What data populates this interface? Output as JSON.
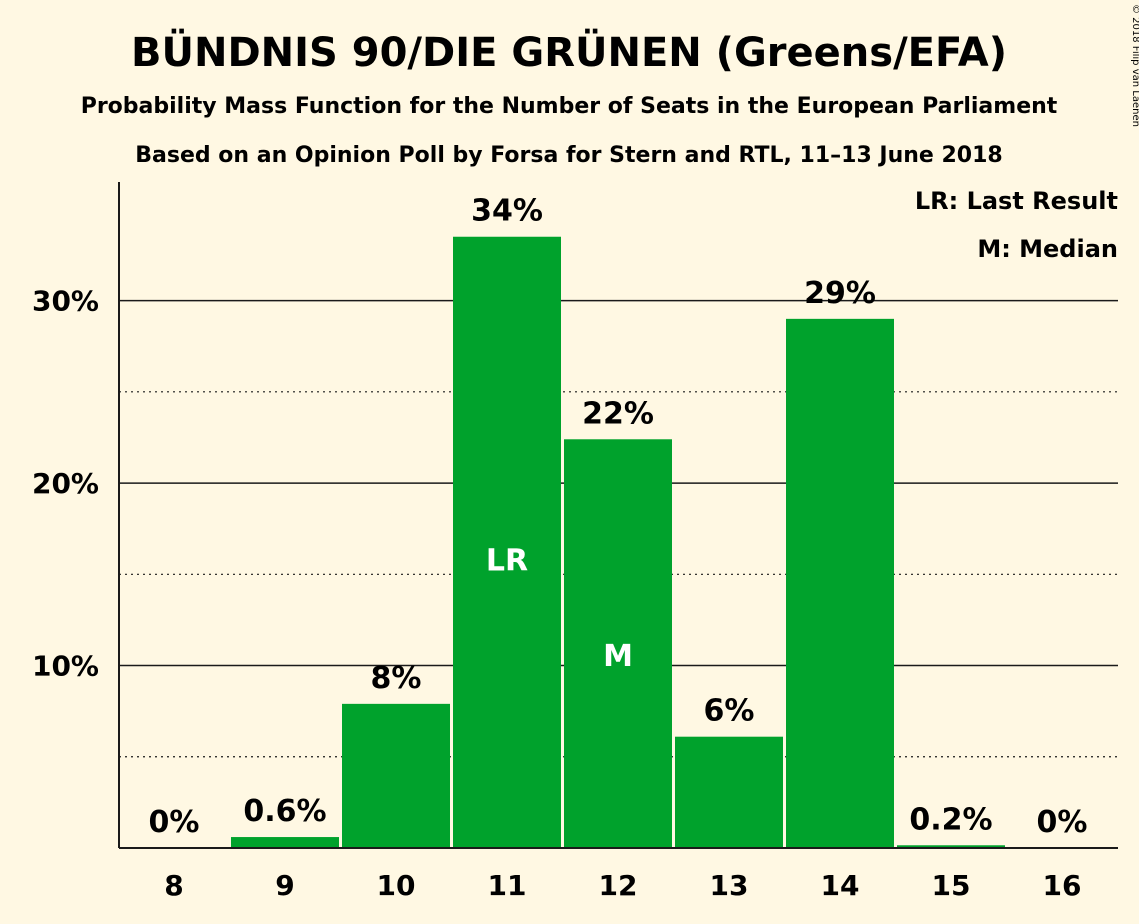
{
  "chart_data": {
    "type": "bar",
    "title": "BÜNDNIS 90/DIE GRÜNEN (Greens/EFA)",
    "subtitle": "Probability Mass Function for the Number of Seats in the European Parliament",
    "subtitle2": "Based on an Opinion Poll by Forsa for Stern and RTL, 11–13 June 2018",
    "categories": [
      "8",
      "9",
      "10",
      "11",
      "12",
      "13",
      "14",
      "15",
      "16"
    ],
    "values": [
      0,
      0.6,
      7.9,
      33.5,
      22.4,
      6.1,
      29.0,
      0.15,
      0
    ],
    "data_labels": [
      "0%",
      "0.6%",
      "8%",
      "34%",
      "22%",
      "6%",
      "29%",
      "0.2%",
      "0%"
    ],
    "bar_markers": {
      "11": "LR",
      "12": "M"
    },
    "ylim": [
      0,
      36.5
    ],
    "yticks": [
      10,
      20,
      30
    ],
    "ytick_labels": [
      "10%",
      "20%",
      "30%"
    ],
    "minor_gridlines": [
      5,
      15,
      25
    ],
    "grid": true,
    "legend": [
      "LR: Last Result",
      "M: Median"
    ],
    "legend_placement": "top-right",
    "copyright": "© 2018 Filip van Laenen",
    "colors": {
      "bar": "#00a22c",
      "background": "#fff8e3",
      "text": "#1a1a1a"
    }
  }
}
